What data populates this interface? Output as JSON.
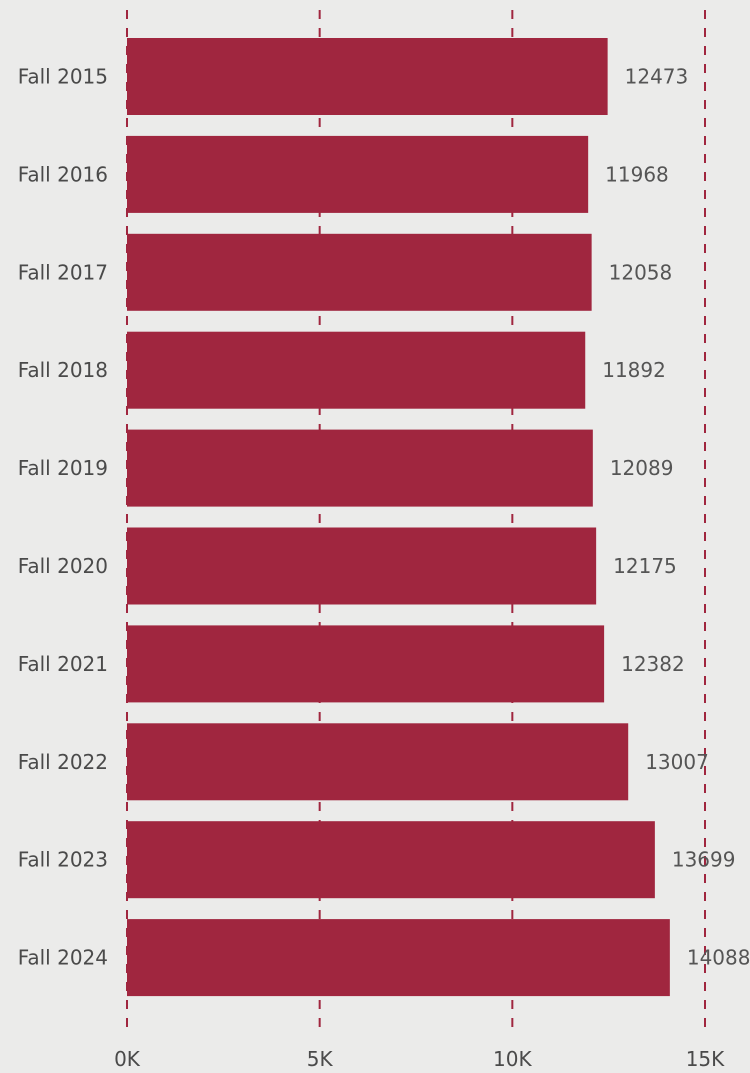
{
  "chart_data": {
    "type": "bar",
    "orientation": "horizontal",
    "categories": [
      "Fall 2015",
      "Fall 2016",
      "Fall 2017",
      "Fall 2018",
      "Fall 2019",
      "Fall 2020",
      "Fall 2021",
      "Fall 2022",
      "Fall 2023",
      "Fall 2024"
    ],
    "values": [
      12473,
      11968,
      12058,
      11892,
      12089,
      12175,
      12382,
      13007,
      13699,
      14088
    ],
    "value_labels": [
      "12473",
      "11968",
      "12058",
      "11892",
      "12089",
      "12175",
      "12382",
      "13007",
      "13699",
      "14088"
    ],
    "xlim": [
      0,
      15000
    ],
    "xticks": [
      0,
      5000,
      10000,
      15000
    ],
    "xtick_labels": [
      "0K",
      "5K",
      "10K",
      "15K"
    ],
    "grid": "vertical dashed",
    "bar_color": "#a0263f",
    "grid_color": "#a0263f",
    "background_color": "#ebebea",
    "title": "",
    "xlabel": "",
    "ylabel": ""
  }
}
